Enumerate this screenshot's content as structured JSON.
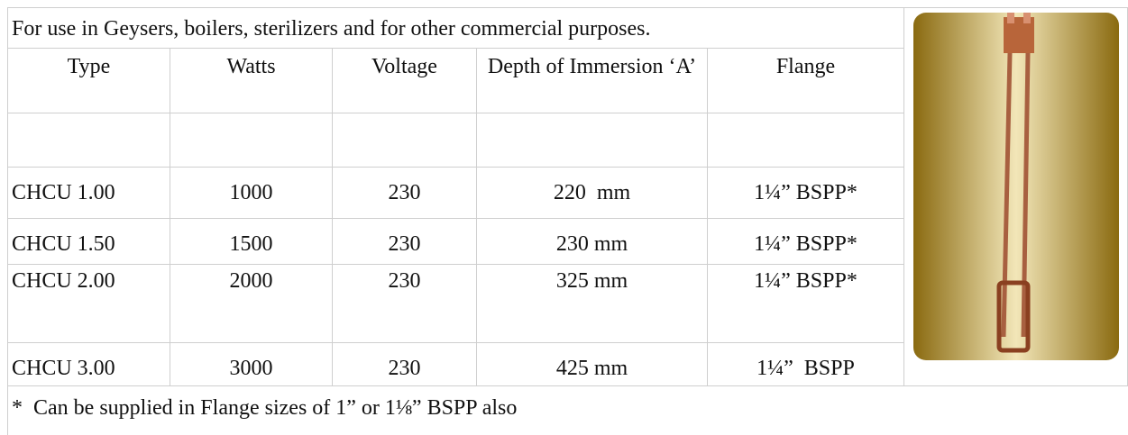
{
  "header": {
    "title": "For use in Geysers, boilers, sterilizers and for other commercial purposes."
  },
  "table": {
    "columns": [
      "Type",
      "Watts",
      "Voltage",
      "Depth of Immersion ‘A’",
      "Flange"
    ],
    "rows": [
      [
        "CHCU 1.00",
        "1000",
        "230",
        "220  mm",
        "1¼” BSPP*"
      ],
      [
        "CHCU 1.50",
        "1500",
        "230",
        "230 mm",
        "1¼” BSPP*"
      ],
      [
        "CHCU 2.00",
        "2000",
        "230",
        "325 mm",
        "1¼” BSPP*"
      ],
      [
        "CHCU 3.00",
        "3000",
        "230",
        "425 mm",
        "1¼”  BSPP"
      ]
    ]
  },
  "footnote": "*  Can be supplied in Flange sizes of 1” or 1⅛” BSPP also"
}
